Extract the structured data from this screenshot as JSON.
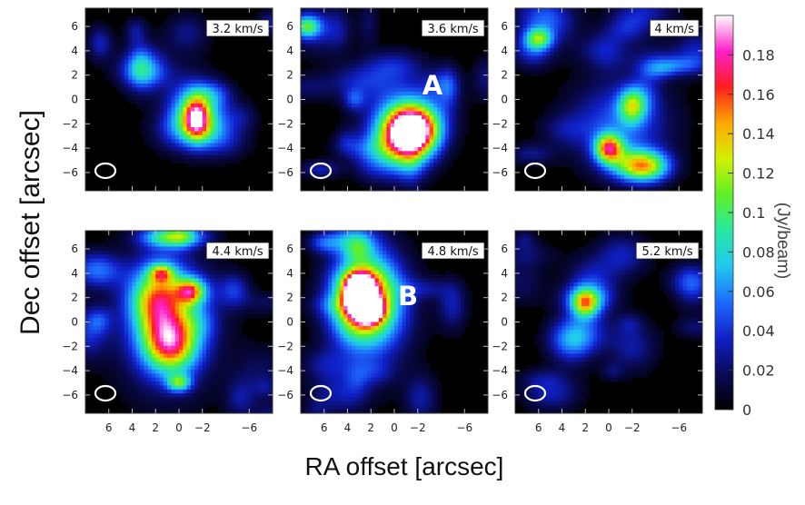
{
  "figure": {
    "ylabel": "Dec offset [arcsec]",
    "xlabel": "RA offset [arcsec]"
  },
  "colorbar": {
    "unit": "(Jy/beam)",
    "min": 0,
    "max": 0.2,
    "ticks": [
      0,
      0.02,
      0.04,
      0.06,
      0.08,
      0.1,
      0.12,
      0.14,
      0.16,
      0.18
    ],
    "tick_labels": [
      "0",
      "0.02",
      "0.04",
      "0.06",
      "0.08",
      "0.1",
      "0.12",
      "0.14",
      "0.16",
      "0.18"
    ],
    "colors": [
      "#000000",
      "#0a0a55",
      "#1020c8",
      "#1e6cff",
      "#20c8f0",
      "#28e8a0",
      "#5ef028",
      "#d2f000",
      "#ffa800",
      "#ff1e1e",
      "#ff20c8",
      "#ffffff"
    ]
  },
  "chart_data": [
    {
      "type": "heatmap",
      "velocity_label": "3.2 km/s",
      "xlim": [
        8,
        -8
      ],
      "ylim": [
        -7.5,
        7.5
      ],
      "xticks": [
        6,
        4,
        2,
        0,
        -2,
        -6
      ],
      "xtick_labels": [
        "6",
        "4",
        "2",
        "0",
        "−2",
        "−6"
      ],
      "yticks": [
        6,
        4,
        2,
        0,
        -2,
        -4,
        -6
      ],
      "ytick_labels": [
        "6",
        "4",
        "2",
        "0",
        "−2",
        "−4",
        "−6"
      ],
      "show_xticklabels": false,
      "show_yticklabels": true,
      "peak_label": "",
      "emission": [
        {
          "x": -1.5,
          "y": -1.5,
          "sx": 0.8,
          "sy": 1.2,
          "amp": 0.15
        },
        {
          "x": -1.0,
          "y": -0.5,
          "sx": 1.5,
          "sy": 2.0,
          "amp": 0.04
        },
        {
          "x": 3.0,
          "y": 3.0,
          "sx": 1.5,
          "sy": 1.0,
          "amp": 0.025
        },
        {
          "x": -4.0,
          "y": -3.5,
          "sx": 1.5,
          "sy": 1.0,
          "amp": 0.025
        }
      ]
    },
    {
      "type": "heatmap",
      "velocity_label": "3.6 km/s",
      "xlim": [
        8,
        -8
      ],
      "ylim": [
        -7.5,
        7.5
      ],
      "xticks": [
        6,
        4,
        2,
        0,
        -2,
        -6
      ],
      "xtick_labels": [
        "6",
        "4",
        "2",
        "0",
        "−2",
        "−6"
      ],
      "yticks": [
        6,
        4,
        2,
        0,
        -2,
        -4,
        -6
      ],
      "ytick_labels": [
        "6",
        "4",
        "2",
        "0",
        "−2",
        "−4",
        "−6"
      ],
      "show_xticklabels": false,
      "show_yticklabels": true,
      "peak_label": "A",
      "emission": [
        {
          "x": -1.5,
          "y": -2.5,
          "sx": 1.5,
          "sy": 1.3,
          "amp": 0.21
        },
        {
          "x": -0.5,
          "y": -4.0,
          "sx": 1.8,
          "sy": 1.6,
          "amp": 0.09
        },
        {
          "x": -1.0,
          "y": -1.0,
          "sx": 2.5,
          "sy": 2.0,
          "amp": 0.05
        },
        {
          "x": 7.5,
          "y": 6.0,
          "sx": 0.8,
          "sy": 0.6,
          "amp": 0.08
        },
        {
          "x": 3.0,
          "y": 1.5,
          "sx": 2.0,
          "sy": 1.0,
          "amp": 0.03
        }
      ]
    },
    {
      "type": "heatmap",
      "velocity_label": "4 km/s",
      "xlim": [
        8,
        -8
      ],
      "ylim": [
        -7.5,
        7.5
      ],
      "xticks": [
        6,
        4,
        2,
        0,
        -2,
        -6
      ],
      "xtick_labels": [
        "6",
        "4",
        "2",
        "0",
        "−2",
        "−6"
      ],
      "yticks": [
        6,
        4,
        2,
        0,
        -2,
        -4,
        -6
      ],
      "ytick_labels": [
        "6",
        "4",
        "2",
        "0",
        "−2",
        "−4",
        "−6"
      ],
      "show_xticklabels": false,
      "show_yticklabels": true,
      "peak_label": "",
      "emission": [
        {
          "x": 0.0,
          "y": -4.0,
          "sx": 0.8,
          "sy": 0.8,
          "amp": 0.13
        },
        {
          "x": -3.0,
          "y": -5.5,
          "sx": 1.5,
          "sy": 0.9,
          "amp": 0.13
        },
        {
          "x": -2.0,
          "y": -0.5,
          "sx": 0.8,
          "sy": 1.0,
          "amp": 0.09
        },
        {
          "x": -1.0,
          "y": -2.0,
          "sx": 3.0,
          "sy": 2.5,
          "amp": 0.05
        },
        {
          "x": 6.0,
          "y": 5.0,
          "sx": 0.8,
          "sy": 0.6,
          "amp": 0.08
        },
        {
          "x": 6.5,
          "y": 4.0,
          "sx": 1.2,
          "sy": 1.0,
          "amp": 0.04
        }
      ]
    },
    {
      "type": "heatmap",
      "velocity_label": "4.4 km/s",
      "xlim": [
        8,
        -8
      ],
      "ylim": [
        -7.5,
        7.5
      ],
      "xticks": [
        6,
        4,
        2,
        0,
        -2,
        -6
      ],
      "xtick_labels": [
        "6",
        "4",
        "2",
        "0",
        "−2",
        "−6"
      ],
      "yticks": [
        6,
        4,
        2,
        0,
        -2,
        -4,
        -6
      ],
      "ytick_labels": [
        "6",
        "4",
        "2",
        "0",
        "−2",
        "−4",
        "−6"
      ],
      "show_xticklabels": true,
      "show_yticklabels": true,
      "peak_label": "",
      "emission": [
        {
          "x": 1.5,
          "y": 1.0,
          "sx": 1.5,
          "sy": 2.5,
          "amp": 0.105
        },
        {
          "x": 0.5,
          "y": -2.0,
          "sx": 1.5,
          "sy": 1.5,
          "amp": 0.1
        },
        {
          "x": -1.0,
          "y": 2.5,
          "sx": 0.8,
          "sy": 0.7,
          "amp": 0.1
        },
        {
          "x": 1.5,
          "y": 4.0,
          "sx": 0.7,
          "sy": 0.5,
          "amp": 0.08
        },
        {
          "x": 0.5,
          "y": 7.0,
          "sx": 1.8,
          "sy": 0.6,
          "amp": 0.1
        },
        {
          "x": 0.0,
          "y": -5.0,
          "sx": 0.7,
          "sy": 0.5,
          "amp": 0.08
        },
        {
          "x": 1.0,
          "y": 0.0,
          "sx": 3.0,
          "sy": 4.0,
          "amp": 0.05
        }
      ]
    },
    {
      "type": "heatmap",
      "velocity_label": "4.8 km/s",
      "xlim": [
        8,
        -8
      ],
      "ylim": [
        -7.5,
        7.5
      ],
      "xticks": [
        6,
        4,
        2,
        0,
        -2,
        -6
      ],
      "xtick_labels": [
        "6",
        "4",
        "2",
        "0",
        "−2",
        "−6"
      ],
      "yticks": [
        6,
        4,
        2,
        0,
        -2,
        -4,
        -6
      ],
      "ytick_labels": [
        "6",
        "4",
        "2",
        "0",
        "−2",
        "−4",
        "−6"
      ],
      "show_xticklabels": true,
      "show_yticklabels": true,
      "peak_label": "B",
      "emission": [
        {
          "x": 3.0,
          "y": 2.5,
          "sx": 0.8,
          "sy": 0.9,
          "amp": 0.2
        },
        {
          "x": 2.2,
          "y": 1.0,
          "sx": 0.8,
          "sy": 0.7,
          "amp": 0.18
        },
        {
          "x": 2.5,
          "y": 2.0,
          "sx": 1.8,
          "sy": 2.3,
          "amp": 0.14
        },
        {
          "x": 2.0,
          "y": 1.0,
          "sx": 2.5,
          "sy": 3.5,
          "amp": 0.05
        },
        {
          "x": 6.0,
          "y": 6.5,
          "sx": 1.0,
          "sy": 0.6,
          "amp": 0.04
        }
      ]
    },
    {
      "type": "heatmap",
      "velocity_label": "5.2 km/s",
      "xlim": [
        8,
        -8
      ],
      "ylim": [
        -7.5,
        7.5
      ],
      "xticks": [
        6,
        4,
        2,
        0,
        -2,
        -6
      ],
      "xtick_labels": [
        "6",
        "4",
        "2",
        "0",
        "−2",
        "−6"
      ],
      "yticks": [
        6,
        4,
        2,
        0,
        -2,
        -4,
        -6
      ],
      "ytick_labels": [
        "6",
        "4",
        "2",
        "0",
        "−2",
        "−4",
        "−6"
      ],
      "show_xticklabels": true,
      "show_yticklabels": true,
      "peak_label": "",
      "emission": [
        {
          "x": 2.0,
          "y": 1.5,
          "sx": 0.8,
          "sy": 0.8,
          "amp": 0.1
        },
        {
          "x": 1.5,
          "y": 3.0,
          "sx": 1.5,
          "sy": 1.5,
          "amp": 0.04
        },
        {
          "x": 3.0,
          "y": -1.5,
          "sx": 1.5,
          "sy": 1.0,
          "amp": 0.03
        },
        {
          "x": -2.0,
          "y": -2.0,
          "sx": 1.5,
          "sy": 1.5,
          "amp": 0.03
        }
      ]
    }
  ]
}
